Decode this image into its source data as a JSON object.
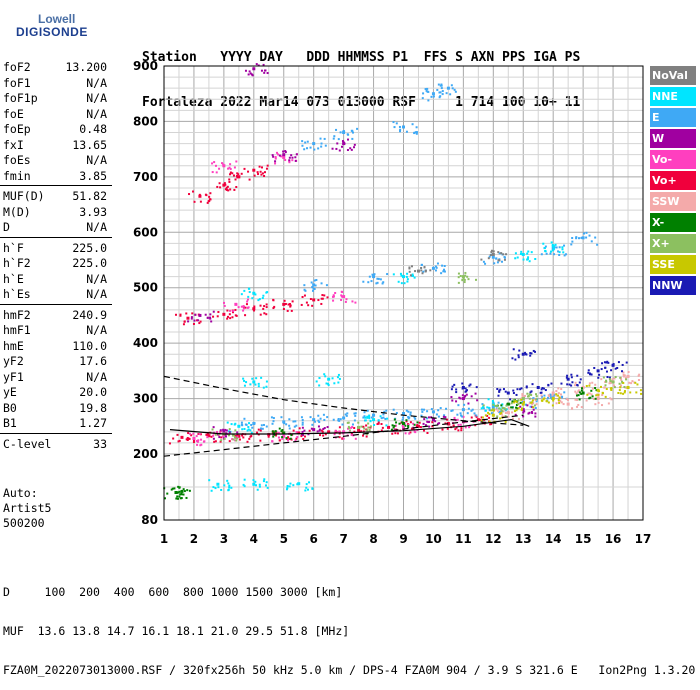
{
  "logo": {
    "brand": "Lowell",
    "product": "DIGISONDE"
  },
  "header": {
    "line1": "Station   YYYY DAY   DDD HHMMSS P1  FFS S AXN PPS IGA PS",
    "line2": "Fortaleza 2022 Mar14 073 013000 RSF     1 714 100 10+ 11"
  },
  "params": [
    [
      {
        "key": "foF2",
        "value": "13.200"
      },
      {
        "key": "foF1",
        "value": "N/A"
      },
      {
        "key": "foF1p",
        "value": "N/A"
      },
      {
        "key": "foE",
        "value": "N/A"
      },
      {
        "key": "foEp",
        "value": "0.48"
      },
      {
        "key": "fxI",
        "value": "13.65"
      },
      {
        "key": "foEs",
        "value": "N/A"
      },
      {
        "key": "fmin",
        "value": "3.85"
      }
    ],
    [
      {
        "key": "MUF(D)",
        "value": "51.82"
      },
      {
        "key": "M(D)",
        "value": "3.93"
      },
      {
        "key": "D",
        "value": "N/A"
      }
    ],
    [
      {
        "key": "h`F",
        "value": "225.0"
      },
      {
        "key": "h`F2",
        "value": "225.0"
      },
      {
        "key": "h`E",
        "value": "N/A"
      },
      {
        "key": "h`Es",
        "value": "N/A"
      }
    ],
    [
      {
        "key": "hmF2",
        "value": "240.9"
      },
      {
        "key": "hmF1",
        "value": "N/A"
      },
      {
        "key": "hmE",
        "value": "110.0"
      },
      {
        "key": "yF2",
        "value": "17.6"
      },
      {
        "key": "yF1",
        "value": "N/A"
      },
      {
        "key": "yE",
        "value": "20.0"
      },
      {
        "key": "B0",
        "value": "19.8"
      },
      {
        "key": "B1",
        "value": "1.27"
      }
    ],
    [
      {
        "key": "C-level",
        "value": "33"
      }
    ]
  ],
  "extra": {
    "auto": "Auto:",
    "artist": "Artist5",
    "version": "500200"
  },
  "footer": {
    "line1": "D     100  200  400  600  800 1000 1500 3000 [km]",
    "line2": "MUF  13.6 13.8 14.7 16.1 18.1 21.0 29.5 51.8 [MHz]",
    "line3": "FZA0M_2022073013000.RSF / 320fx256h 50 kHz 5.0 km / DPS-4 FZA0M 904 / 3.9 S 321.6 E   Ion2Png 1.3.20"
  },
  "legend": [
    {
      "label": "NoVal",
      "color": "#808080"
    },
    {
      "label": "NNE",
      "color": "#00e5ff"
    },
    {
      "label": "E",
      "color": "#3fa9f5"
    },
    {
      "label": "W",
      "color": "#a000a0"
    },
    {
      "label": "Vo-",
      "color": "#ff3fbf"
    },
    {
      "label": "Vo+",
      "color": "#f0003c"
    },
    {
      "label": "SSW",
      "color": "#f4aaaa"
    },
    {
      "label": "X-",
      "color": "#008000"
    },
    {
      "label": "X+",
      "color": "#8cc060"
    },
    {
      "label": "SSE",
      "color": "#c8c800"
    },
    {
      "label": "NNW",
      "color": "#1a1ab4"
    }
  ],
  "chart_data": {
    "type": "scatter",
    "title": "",
    "xlabel": "",
    "ylabel": "",
    "xlim": [
      1,
      17
    ],
    "ylim": [
      80,
      900
    ],
    "x_ticks": [
      1,
      2,
      3,
      4,
      5,
      6,
      7,
      8,
      9,
      10,
      11,
      12,
      13,
      14,
      15,
      16,
      17
    ],
    "y_ticks": [
      80,
      200,
      300,
      400,
      500,
      600,
      700,
      800,
      900
    ],
    "grid": true,
    "legend_position": "right",
    "series": [
      {
        "name": "Vo+",
        "color": "#f0003c",
        "points": [
          [
            1.6,
            230
          ],
          [
            2.5,
            233
          ],
          [
            3.5,
            232
          ],
          [
            4.5,
            235
          ],
          [
            5.5,
            238
          ],
          [
            6.5,
            240
          ],
          [
            7.5,
            243
          ],
          [
            8.5,
            248
          ],
          [
            9.5,
            250
          ],
          [
            10.5,
            255
          ],
          [
            11.5,
            262
          ],
          [
            1.8,
            445
          ],
          [
            3,
            452
          ],
          [
            4,
            462
          ],
          [
            5,
            470
          ],
          [
            6,
            478
          ],
          [
            2.2,
            665
          ],
          [
            3,
            685
          ],
          [
            3.5,
            700
          ],
          [
            4,
            712
          ]
        ]
      },
      {
        "name": "Vo-",
        "color": "#ff3fbf",
        "points": [
          [
            2,
            228
          ],
          [
            3,
            236
          ],
          [
            5,
            232
          ],
          [
            7,
            240
          ],
          [
            9,
            246
          ],
          [
            11,
            258
          ],
          [
            3.4,
            470
          ],
          [
            7,
            484
          ],
          [
            3,
            720
          ],
          [
            5,
            735
          ]
        ]
      },
      {
        "name": "E",
        "color": "#3fa9f5",
        "points": [
          [
            4,
            255
          ],
          [
            5,
            258
          ],
          [
            6,
            262
          ],
          [
            7,
            265
          ],
          [
            8,
            270
          ],
          [
            9,
            273
          ],
          [
            10,
            276
          ],
          [
            11,
            280
          ],
          [
            12,
            285
          ],
          [
            13,
            295
          ],
          [
            14,
            305
          ],
          [
            6,
            505
          ],
          [
            8,
            520
          ],
          [
            10,
            535
          ],
          [
            12,
            555
          ],
          [
            14,
            570
          ],
          [
            15,
            590
          ],
          [
            6,
            760
          ],
          [
            7,
            780
          ],
          [
            9,
            790
          ],
          [
            10,
            850
          ],
          [
            10.5,
            860
          ]
        ]
      },
      {
        "name": "NNE",
        "color": "#00e5ff",
        "points": [
          [
            3.5,
            250
          ],
          [
            8,
            262
          ],
          [
            12,
            290
          ],
          [
            4,
            490
          ],
          [
            9,
            520
          ],
          [
            13,
            560
          ],
          [
            14,
            575
          ],
          [
            2.8,
            145
          ],
          [
            4,
            145
          ],
          [
            5.5,
            146
          ],
          [
            4,
            330
          ],
          [
            6.5,
            335
          ]
        ]
      },
      {
        "name": "SSW",
        "color": "#f4aaaa",
        "points": [
          [
            12.5,
            275
          ],
          [
            13,
            300
          ],
          [
            14,
            310
          ],
          [
            15,
            320
          ],
          [
            16,
            330
          ],
          [
            16.5,
            340
          ],
          [
            14.5,
            290
          ],
          [
            15.5,
            300
          ]
        ]
      },
      {
        "name": "NNW",
        "color": "#1a1ab4",
        "points": [
          [
            12.5,
            310
          ],
          [
            13.5,
            320
          ],
          [
            14.5,
            335
          ],
          [
            15.5,
            350
          ],
          [
            16,
            360
          ],
          [
            13,
            380
          ],
          [
            11,
            320
          ]
        ]
      },
      {
        "name": "W",
        "color": "#a000a0",
        "points": [
          [
            3,
            240
          ],
          [
            6,
            244
          ],
          [
            10,
            262
          ],
          [
            13,
            280
          ],
          [
            5,
            740
          ],
          [
            7,
            760
          ],
          [
            2.2,
            450
          ],
          [
            4,
            895
          ],
          [
            11,
            300
          ]
        ]
      },
      {
        "name": "X-",
        "color": "#008000",
        "points": [
          [
            1.4,
            130
          ],
          [
            1.6,
            132
          ],
          [
            5,
            238
          ],
          [
            9,
            255
          ],
          [
            12.5,
            290
          ],
          [
            15,
            310
          ]
        ]
      },
      {
        "name": "X+",
        "color": "#8cc060",
        "points": [
          [
            3,
            236
          ],
          [
            7.5,
            248
          ],
          [
            12,
            280
          ],
          [
            16,
            330
          ],
          [
            11,
            520
          ],
          [
            13,
            300
          ]
        ]
      },
      {
        "name": "SSE",
        "color": "#c8c800",
        "points": [
          [
            13,
            290
          ],
          [
            14,
            300
          ],
          [
            15.5,
            315
          ],
          [
            16.5,
            320
          ],
          [
            12,
            270
          ]
        ]
      },
      {
        "name": "NoVal",
        "color": "#808080",
        "points": [
          [
            9.5,
            530
          ],
          [
            12,
            560
          ]
        ]
      }
    ],
    "lines": {
      "dashed_upper": [
        [
          1,
          340
        ],
        [
          3,
          318
        ],
        [
          5,
          298
        ],
        [
          7,
          283
        ],
        [
          9,
          270
        ],
        [
          11,
          260
        ],
        [
          13,
          252
        ]
      ],
      "dashed_lower": [
        [
          1,
          196
        ],
        [
          3,
          208
        ],
        [
          5,
          220
        ],
        [
          7,
          232
        ],
        [
          9,
          245
        ],
        [
          11,
          258
        ],
        [
          13,
          270
        ]
      ],
      "solid_profile": [
        [
          1.2,
          244
        ],
        [
          3,
          236
        ],
        [
          5,
          236
        ],
        [
          7,
          238
        ],
        [
          9,
          242
        ],
        [
          11,
          250
        ],
        [
          12.6,
          262
        ],
        [
          13.2,
          250
        ]
      ]
    }
  }
}
